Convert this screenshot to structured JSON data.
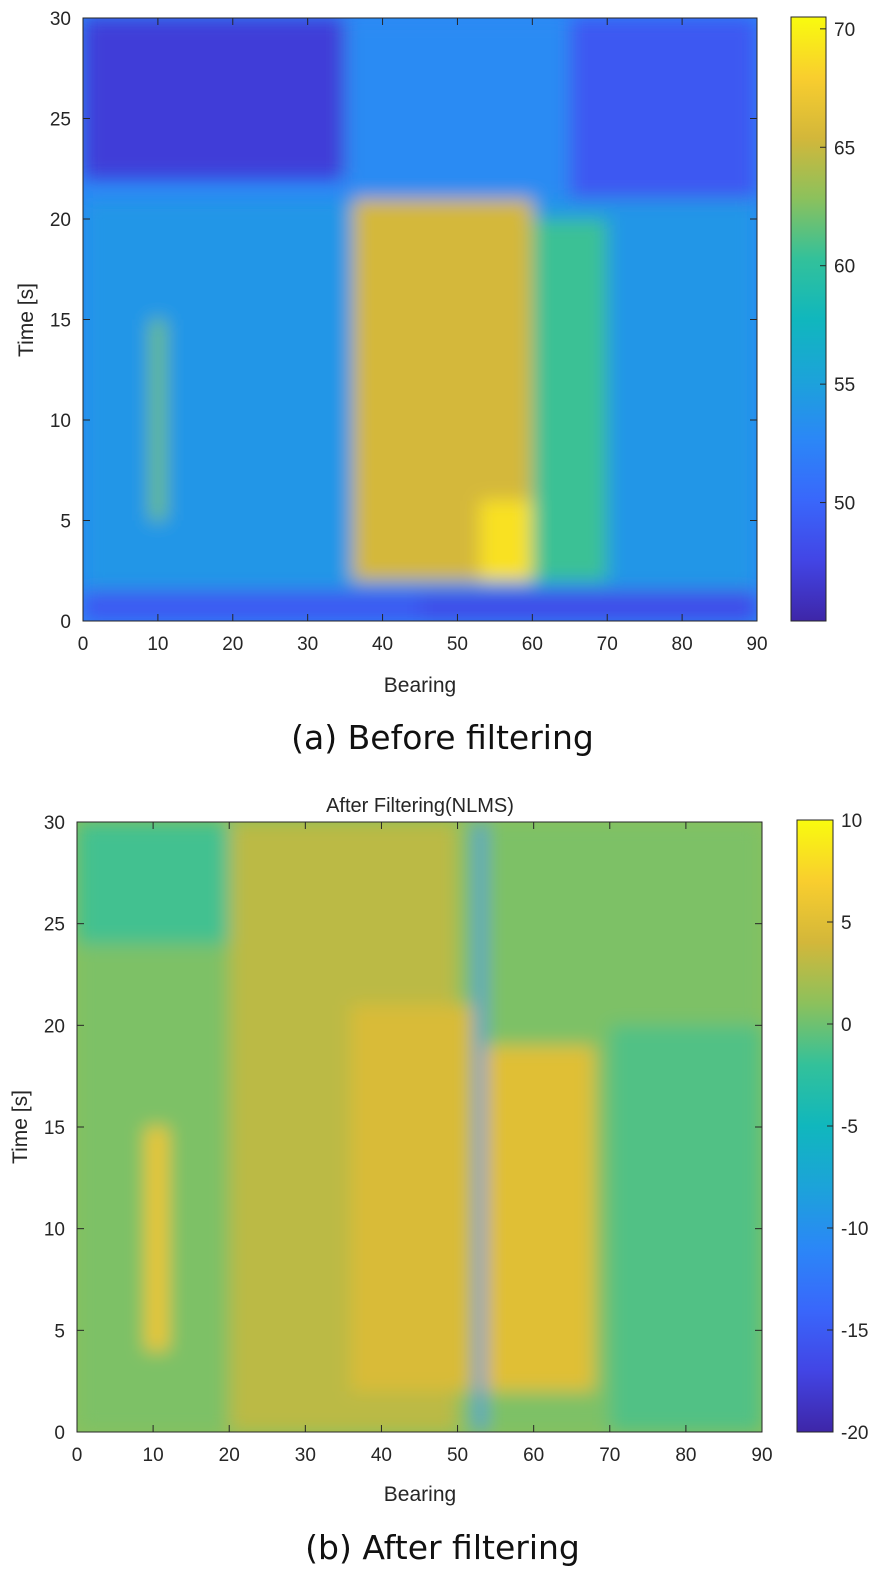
{
  "chart_data": [
    {
      "type": "heatmap",
      "title": "",
      "xlabel": "Bearing",
      "ylabel": "Time [s]",
      "xlim": [
        0,
        90
      ],
      "ylim": [
        0,
        30
      ],
      "xticks": [
        "0",
        "10",
        "20",
        "30",
        "40",
        "50",
        "60",
        "70",
        "80",
        "90"
      ],
      "yticks": [
        "0",
        "5",
        "10",
        "15",
        "20",
        "25",
        "30"
      ],
      "colorbar": {
        "ticks": [
          "50",
          "55",
          "60",
          "65",
          "70"
        ],
        "range": [
          45,
          70.5
        ]
      },
      "heat_regions": [
        {
          "bearing": [
            0,
            90
          ],
          "time": [
            1.5,
            21
          ],
          "value": 54
        },
        {
          "bearing": [
            36,
            60
          ],
          "time": [
            2,
            21
          ],
          "value": 65.5
        },
        {
          "bearing": [
            60,
            70
          ],
          "time": [
            2,
            20
          ],
          "value": 60.5
        },
        {
          "bearing": [
            53,
            60
          ],
          "time": [
            2,
            6
          ],
          "value": 69
        },
        {
          "bearing": [
            9,
            11
          ],
          "time": [
            5,
            15
          ],
          "value": 62
        },
        {
          "bearing": [
            45,
            90
          ],
          "time": [
            0,
            1.5
          ],
          "value": 48
        },
        {
          "bearing": [
            0,
            45
          ],
          "time": [
            0,
            1.5
          ],
          "value": 49
        },
        {
          "bearing": [
            0,
            35
          ],
          "time": [
            22,
            30
          ],
          "value": 47
        },
        {
          "bearing": [
            35,
            65
          ],
          "time": [
            21,
            30
          ],
          "value": 53
        },
        {
          "bearing": [
            65,
            90
          ],
          "time": [
            21,
            30
          ],
          "value": 49
        }
      ],
      "caption": "(a) Before filtering"
    },
    {
      "type": "heatmap",
      "title": "After Filtering(NLMS)",
      "xlabel": "Bearing",
      "ylabel": "Time [s]",
      "xlim": [
        0,
        90
      ],
      "ylim": [
        0,
        30
      ],
      "xticks": [
        "0",
        "10",
        "20",
        "30",
        "40",
        "50",
        "60",
        "70",
        "80",
        "90"
      ],
      "yticks": [
        "0",
        "5",
        "10",
        "15",
        "20",
        "25",
        "30"
      ],
      "colorbar": {
        "ticks": [
          "-20",
          "-15",
          "-10",
          "-5",
          "0",
          "5",
          "10"
        ],
        "range": [
          -20,
          10
        ]
      },
      "heat_regions": [
        {
          "bearing": [
            0,
            90
          ],
          "time": [
            0,
            30
          ],
          "value": 0.5
        },
        {
          "bearing": [
            20,
            50
          ],
          "time": [
            0,
            30
          ],
          "value": 3
        },
        {
          "bearing": [
            36,
            52
          ],
          "time": [
            2,
            21
          ],
          "value": 4.5
        },
        {
          "bearing": [
            53,
            68
          ],
          "time": [
            2,
            19
          ],
          "value": 5
        },
        {
          "bearing": [
            9,
            12
          ],
          "time": [
            4,
            15
          ],
          "value": 6
        },
        {
          "bearing": [
            52.5,
            53.5
          ],
          "time": [
            0,
            30
          ],
          "value": -11
        },
        {
          "bearing": [
            70,
            90
          ],
          "time": [
            0,
            20
          ],
          "value": -1
        },
        {
          "bearing": [
            0,
            20
          ],
          "time": [
            24,
            30
          ],
          "value": -1.5
        }
      ],
      "caption": "(b) After filtering"
    }
  ]
}
